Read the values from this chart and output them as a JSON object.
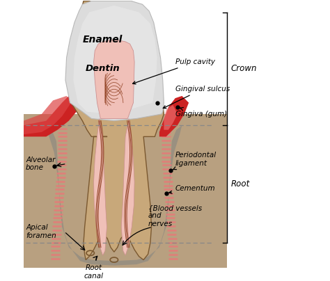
{
  "background_color": "#ffffff",
  "labels": {
    "enamel": "Enamel",
    "dentin": "Dentin",
    "pulp_cavity": "Pulp cavity",
    "gingival_sulcus": "Gingival sulcus",
    "gingiva": "Gingiva (gum)",
    "periodontal": "Periodontal\nligament",
    "cementum": "Cementum",
    "alveolar_bone": "Alveolar\nbone",
    "apical_foramen": "Apical\nforamen",
    "root_canal": "Root\ncanal",
    "blood_vessels": "{Blood vessels\nand\nnerves",
    "crown": "Crown",
    "root": "Root"
  },
  "colors": {
    "enamel": "#e0e0e0",
    "enamel_shadow": "#c8c8c8",
    "dentin": "#c8a87a",
    "pulp": "#f0c0b8",
    "gingiva_dark": "#cc2222",
    "gingiva_mid": "#dd4444",
    "gingiva_light": "#ee7777",
    "bone_bg": "#b8a080",
    "bone_side": "#a89070",
    "gray_socket": "#9a9080",
    "gray_socket2": "#888070",
    "perio_stripe": "#e87878",
    "nerve": "#8b3a1a",
    "cementum_line": "#7a5030",
    "dashed": "#888888",
    "black": "#000000",
    "white": "#ffffff",
    "cream": "#e8d0a0"
  },
  "fig_w": 4.74,
  "fig_h": 4.04,
  "dpi": 100
}
